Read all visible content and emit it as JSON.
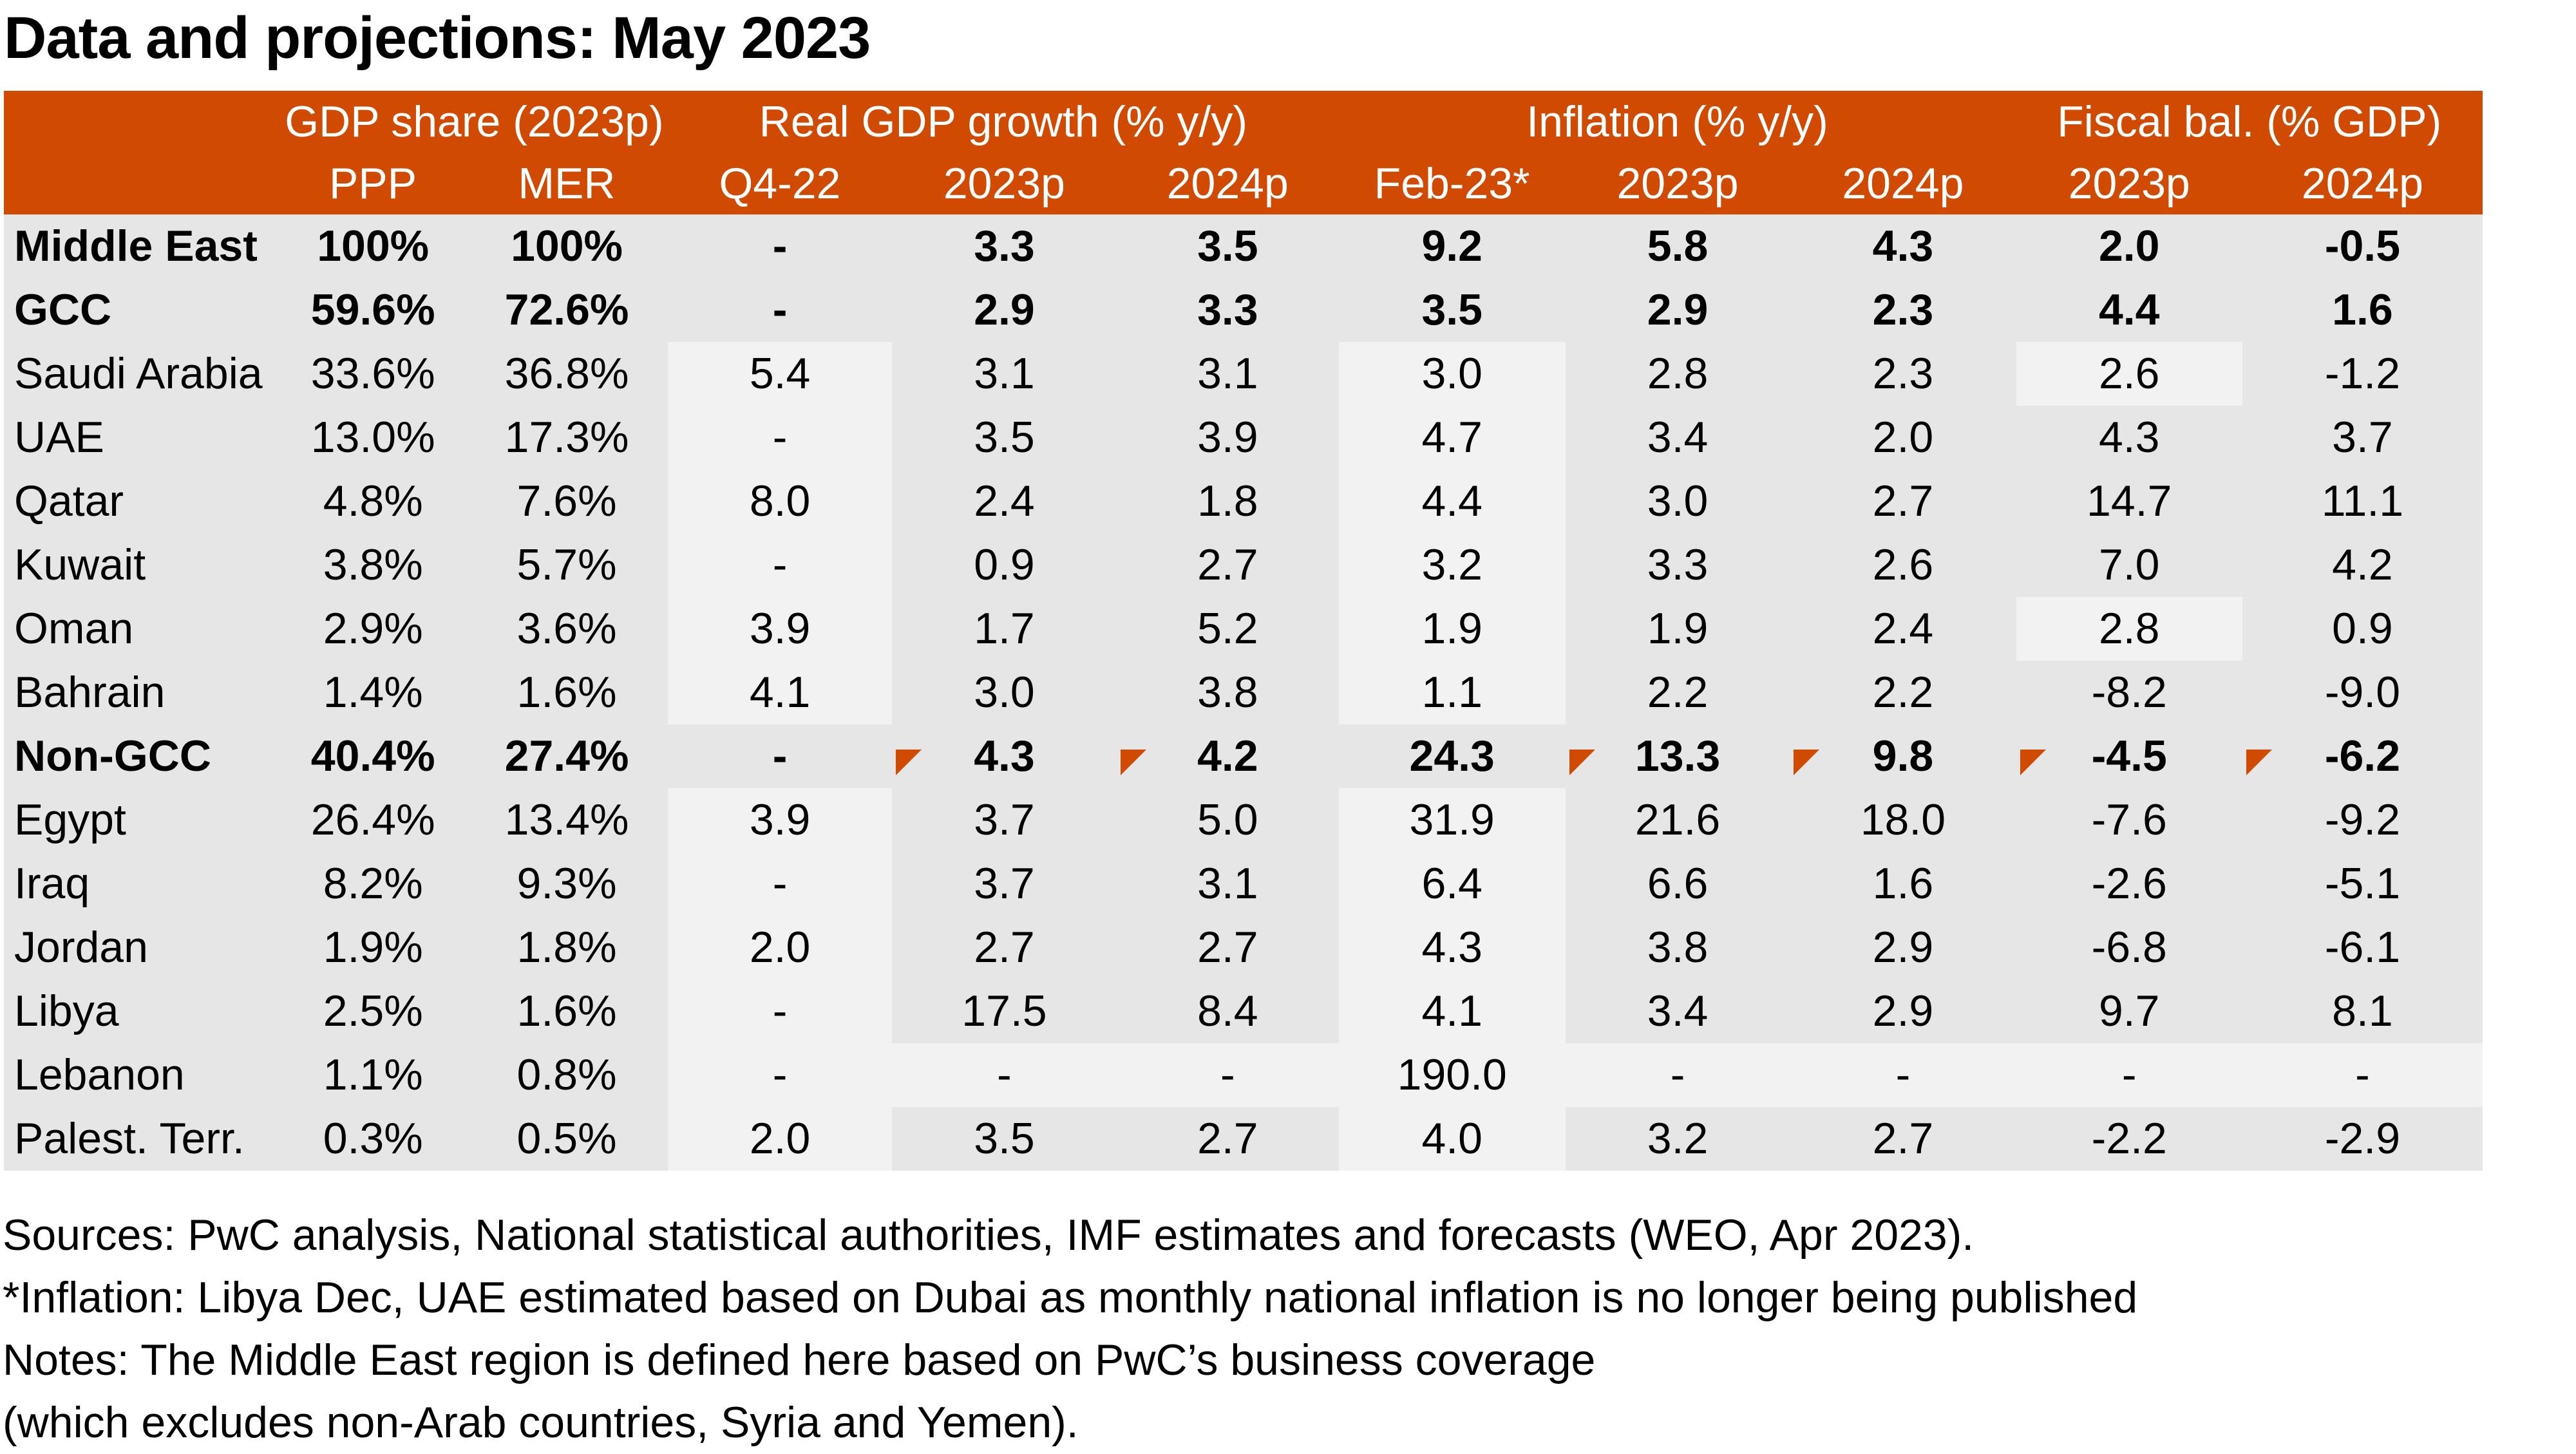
{
  "title": "Data and projections: May 2023",
  "colors": {
    "header_bg": "#d04a02",
    "header_text": "#ffffff",
    "cell_dark": "#e6e6e6",
    "cell_light": "#f2f2f2",
    "marker": "#d04a02"
  },
  "header": {
    "groups": [
      {
        "label": ""
      },
      {
        "label": "GDP share (2023p)"
      },
      {
        "label": "Real GDP growth (% y/y)"
      },
      {
        "label": "Inflation (% y/y)"
      },
      {
        "label": "Fiscal bal. (% GDP)"
      }
    ],
    "columns": [
      "",
      "PPP",
      "MER",
      "Q4-22",
      "2023p",
      "2024p",
      "Feb-23*",
      "2023p",
      "2024p",
      "2023p",
      "2024p"
    ]
  },
  "rows": [
    {
      "name": "Middle East",
      "bold": true,
      "cells": [
        "100%",
        "100%",
        "-",
        "3.3",
        "3.5",
        "9.2",
        "5.8",
        "4.3",
        "2.0",
        "-0.5"
      ]
    },
    {
      "name": "GCC",
      "bold": true,
      "cells": [
        "59.6%",
        "72.6%",
        "-",
        "2.9",
        "3.3",
        "3.5",
        "2.9",
        "2.3",
        "4.4",
        "1.6"
      ]
    },
    {
      "name": "Saudi Arabia",
      "bold": false,
      "cells": [
        "33.6%",
        "36.8%",
        "5.4",
        "3.1",
        "3.1",
        "3.0",
        "2.8",
        "2.3",
        "2.6",
        "-1.2"
      ]
    },
    {
      "name": "UAE",
      "bold": false,
      "cells": [
        "13.0%",
        "17.3%",
        "-",
        "3.5",
        "3.9",
        "4.7",
        "3.4",
        "2.0",
        "4.3",
        "3.7"
      ]
    },
    {
      "name": "Qatar",
      "bold": false,
      "cells": [
        "4.8%",
        "7.6%",
        "8.0",
        "2.4",
        "1.8",
        "4.4",
        "3.0",
        "2.7",
        "14.7",
        "11.1"
      ]
    },
    {
      "name": "Kuwait",
      "bold": false,
      "cells": [
        "3.8%",
        "5.7%",
        "-",
        "0.9",
        "2.7",
        "3.2",
        "3.3",
        "2.6",
        "7.0",
        "4.2"
      ]
    },
    {
      "name": "Oman",
      "bold": false,
      "cells": [
        "2.9%",
        "3.6%",
        "3.9",
        "1.7",
        "5.2",
        "1.9",
        "1.9",
        "2.4",
        "2.8",
        "0.9"
      ]
    },
    {
      "name": "Bahrain",
      "bold": false,
      "cells": [
        "1.4%",
        "1.6%",
        "4.1",
        "3.0",
        "3.8",
        "1.1",
        "2.2",
        "2.2",
        "-8.2",
        "-9.0"
      ]
    },
    {
      "name": "Non-GCC",
      "bold": true,
      "cells": [
        "40.4%",
        "27.4%",
        "-",
        "4.3",
        "4.2",
        "24.3",
        "13.3",
        "9.8",
        "-4.5",
        "-6.2"
      ]
    },
    {
      "name": "Egypt",
      "bold": false,
      "cells": [
        "26.4%",
        "13.4%",
        "3.9",
        "3.7",
        "5.0",
        "31.9",
        "21.6",
        "18.0",
        "-7.6",
        "-9.2"
      ]
    },
    {
      "name": "Iraq",
      "bold": false,
      "cells": [
        "8.2%",
        "9.3%",
        "-",
        "3.7",
        "3.1",
        "6.4",
        "6.6",
        "1.6",
        "-2.6",
        "-5.1"
      ]
    },
    {
      "name": "Jordan",
      "bold": false,
      "cells": [
        "1.9%",
        "1.8%",
        "2.0",
        "2.7",
        "2.7",
        "4.3",
        "3.8",
        "2.9",
        "-6.8",
        "-6.1"
      ]
    },
    {
      "name": "Libya",
      "bold": false,
      "cells": [
        "2.5%",
        "1.6%",
        "-",
        "17.5",
        "8.4",
        "4.1",
        "3.4",
        "2.9",
        "9.7",
        "8.1"
      ]
    },
    {
      "name": "Lebanon",
      "bold": false,
      "cells": [
        "1.1%",
        "0.8%",
        "-",
        "-",
        "-",
        "190.0",
        "-",
        "-",
        "-",
        "-"
      ]
    },
    {
      "name": "Palest. Terr.",
      "bold": false,
      "cells": [
        "0.3%",
        "0.5%",
        "2.0",
        "3.5",
        "2.7",
        "4.0",
        "3.2",
        "2.7",
        "-2.2",
        "-2.9"
      ]
    }
  ],
  "light_cells": {
    "2": [
      3,
      6,
      9
    ],
    "3": [
      3,
      6
    ],
    "4": [
      3,
      6
    ],
    "5": [
      3,
      6
    ],
    "6": [
      3,
      6,
      9
    ],
    "7": [
      3,
      6
    ],
    "9": [
      3,
      6
    ],
    "10": [
      3,
      6
    ],
    "11": [
      3,
      6
    ],
    "12": [
      3,
      6
    ],
    "13": [
      3,
      4,
      5,
      6,
      7,
      8,
      9,
      10
    ],
    "14": [
      3,
      6
    ]
  },
  "comment_markers": {
    "row": 8,
    "columns": [
      4,
      5,
      7,
      8,
      9,
      10
    ]
  },
  "footer": [
    "Sources: PwC analysis, National statistical authorities, IMF estimates and forecasts (WEO, Apr 2023).",
    "*Inflation: Libya Dec, UAE estimated based on Dubai as monthly national inflation is no longer being published",
    "Notes: The Middle East region is defined here based on PwC’s business coverage",
    "(which excludes non-Arab countries, Syria and Yemen)."
  ]
}
